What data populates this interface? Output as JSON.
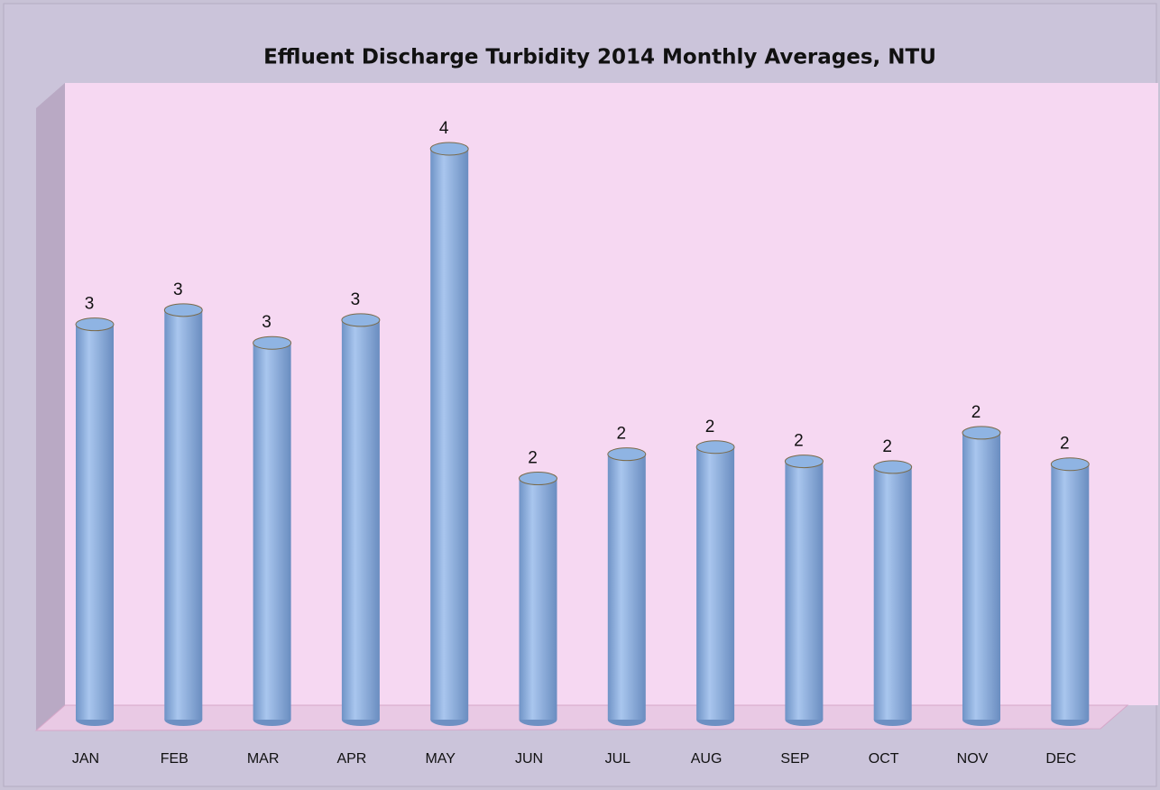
{
  "chart_data": {
    "type": "bar",
    "title": "Effluent Discharge  Turbidity 2014 Monthly Averages, NTU",
    "categories": [
      "JAN",
      "FEB",
      "MAR",
      "APR",
      "MAY",
      "JUN",
      "JUL",
      "AUG",
      "SEP",
      "OCT",
      "NOV",
      "DEC"
    ],
    "values": [
      2.77,
      2.87,
      2.64,
      2.8,
      4.0,
      1.69,
      1.86,
      1.91,
      1.81,
      1.77,
      2.01,
      1.79
    ],
    "value_labels": [
      "3",
      "3",
      "3",
      "3",
      "4",
      "2",
      "2",
      "2",
      "2",
      "2",
      "2",
      "2"
    ],
    "color": "#8fb4e3"
  }
}
